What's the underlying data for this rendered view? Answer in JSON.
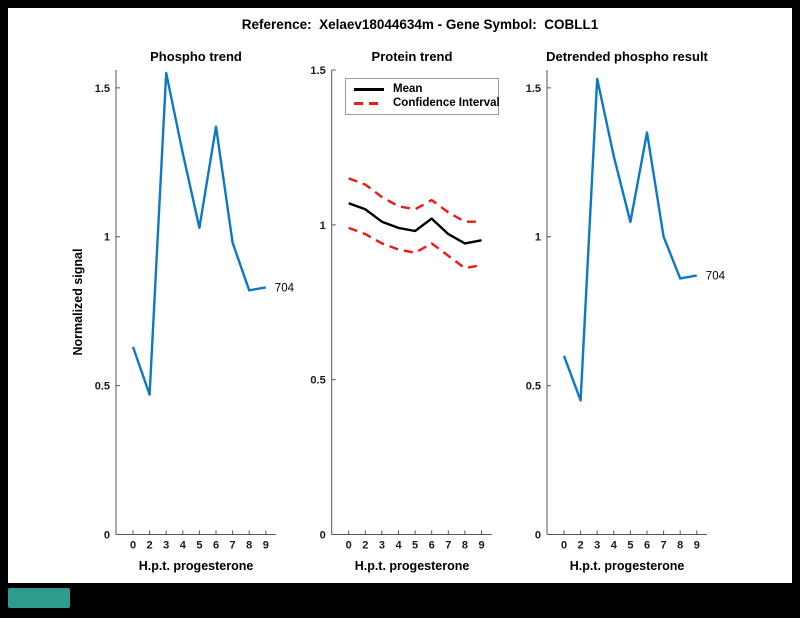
{
  "header": {
    "title": "Reference:  Xelaev18044634m - Gene Symbol:  COBLL1"
  },
  "colors": {
    "line_blue": "#0E78C8",
    "ci_red": "#EC1C12",
    "mean_black": "#000000",
    "axis": "#555555",
    "teal_accent": "#2E9B8F"
  },
  "chart_data": [
    {
      "type": "line",
      "title": "Phospho trend",
      "xlabel": "H.p.t. progesterone",
      "ylabel": "Normalized signal",
      "categories": [
        "0",
        "2",
        "3",
        "4",
        "5",
        "6",
        "7",
        "8",
        "9"
      ],
      "x_values": [
        0,
        2,
        3,
        4,
        5,
        6,
        7,
        8,
        9
      ],
      "y_tick_labels": [
        "0",
        "0.5",
        "1",
        "1.5"
      ],
      "y_tick_values": [
        0,
        0.5,
        1,
        1.5
      ],
      "ylim": [
        0,
        1.56
      ],
      "grid": false,
      "series": [
        {
          "name": "704",
          "name_id": "phospho-line",
          "color": "line_blue",
          "style": "solid",
          "end_label": "704",
          "values": [
            0.63,
            0.47,
            1.55,
            1.28,
            1.03,
            1.37,
            0.98,
            0.82,
            0.83
          ]
        }
      ]
    },
    {
      "type": "line",
      "title": "Protein trend",
      "xlabel": "H.p.t. progesterone",
      "ylabel": "",
      "categories": [
        "0",
        "2",
        "3",
        "4",
        "5",
        "6",
        "7",
        "8",
        "9"
      ],
      "x_values": [
        0,
        2,
        3,
        4,
        5,
        6,
        7,
        8,
        9
      ],
      "y_tick_labels": [
        "0",
        "0.5",
        "1",
        "1.5"
      ],
      "y_tick_values": [
        0,
        0.5,
        1,
        1.5
      ],
      "ylim": [
        0,
        1.5
      ],
      "grid": false,
      "legend": {
        "position": "top-left",
        "items": [
          {
            "label": "Mean",
            "style": "solid",
            "color": "mean_black"
          },
          {
            "label": "Confidence Interval",
            "style": "dashed",
            "color": "ci_red"
          }
        ]
      },
      "series": [
        {
          "name": "Mean",
          "name_id": "mean-line",
          "color": "mean_black",
          "style": "solid",
          "values": [
            1.07,
            1.05,
            1.01,
            0.99,
            0.98,
            1.02,
            0.97,
            0.94,
            0.95
          ]
        },
        {
          "name": "Confidence Interval upper",
          "name_id": "ci-upper-line",
          "color": "ci_red",
          "style": "dashed",
          "values": [
            1.15,
            1.13,
            1.09,
            1.06,
            1.05,
            1.08,
            1.04,
            1.01,
            1.01
          ]
        },
        {
          "name": "Confidence Interval lower",
          "name_id": "ci-lower-line",
          "color": "ci_red",
          "style": "dashed",
          "values": [
            0.99,
            0.97,
            0.94,
            0.92,
            0.91,
            0.94,
            0.9,
            0.86,
            0.87
          ]
        }
      ]
    },
    {
      "type": "line",
      "title": "Detrended phospho result",
      "xlabel": "H.p.t. progesterone",
      "ylabel": "",
      "categories": [
        "0",
        "2",
        "3",
        "4",
        "5",
        "6",
        "7",
        "8",
        "9"
      ],
      "x_values": [
        0,
        2,
        3,
        4,
        5,
        6,
        7,
        8,
        9
      ],
      "y_tick_labels": [
        "0",
        "0.5",
        "1",
        "1.5"
      ],
      "y_tick_values": [
        0,
        0.5,
        1,
        1.5
      ],
      "ylim": [
        0,
        1.56
      ],
      "grid": false,
      "series": [
        {
          "name": "704",
          "name_id": "detrended-line",
          "color": "line_blue",
          "style": "solid",
          "end_label": "704",
          "values": [
            0.6,
            0.45,
            1.53,
            1.27,
            1.05,
            1.35,
            1.0,
            0.86,
            0.87
          ]
        }
      ]
    }
  ]
}
